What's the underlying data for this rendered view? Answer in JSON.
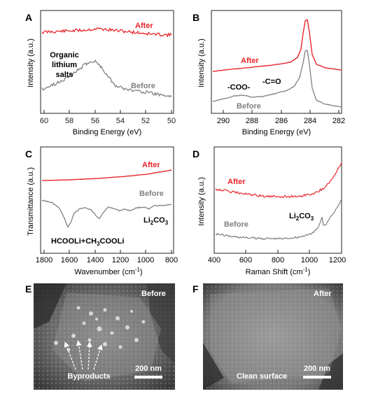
{
  "colors": {
    "after": "#e8262b",
    "before": "#808080",
    "frame": "#222222",
    "sem_text": "#ffffff"
  },
  "panels": {
    "A": {
      "letter": "A",
      "xlabel": "Binding Energy (eV)",
      "ylabel": "Intensity (a.u.)",
      "xticks": [
        "60",
        "58",
        "56",
        "54",
        "52",
        "50"
      ],
      "labels": {
        "after": "After",
        "before": "Before",
        "salts_line1": "Organic",
        "salts_line2": "lithium",
        "salts_line3": "salts"
      }
    },
    "B": {
      "letter": "B",
      "xlabel": "Binding Energy (eV)",
      "ylabel": "Intensity (a.u.)",
      "xticks": [
        "290",
        "288",
        "286",
        "284",
        "282"
      ],
      "labels": {
        "after": "After",
        "before": "Before",
        "coo": "-COO-",
        "co": "-C=O"
      }
    },
    "C": {
      "letter": "C",
      "xlabel": "Wavenumber (cm",
      "xlabel_sup": "-1",
      "xlabel_end": ")",
      "ylabel": "Transmittance (a.u.)",
      "xticks": [
        "1800",
        "1600",
        "1400",
        "1200",
        "1000",
        "800"
      ],
      "labels": {
        "after": "After",
        "before": "Before",
        "li2co3_a": "Li",
        "li2co3_b": "2",
        "li2co3_c": "CO",
        "li2co3_d": "3",
        "formate": "HCOOLi+CH",
        "formate_sub": "3",
        "formate_end": "COOLi"
      }
    },
    "D": {
      "letter": "D",
      "xlabel": "Raman Shift (cm",
      "xlabel_sup": "-1",
      "xlabel_end": ")",
      "ylabel": "Intensity (a.u.)",
      "xticks": [
        "400",
        "600",
        "800",
        "1000",
        "1200"
      ],
      "labels": {
        "after": "After",
        "before": "Before",
        "li2co3_a": "Li",
        "li2co3_b": "2",
        "li2co3_c": "CO",
        "li2co3_d": "3"
      }
    },
    "E": {
      "letter": "E",
      "tag": "Before",
      "annotation": "Byproducts",
      "scale": "200 nm"
    },
    "F": {
      "letter": "F",
      "tag": "After",
      "annotation": "Clean surface",
      "scale": "200 nm"
    }
  }
}
